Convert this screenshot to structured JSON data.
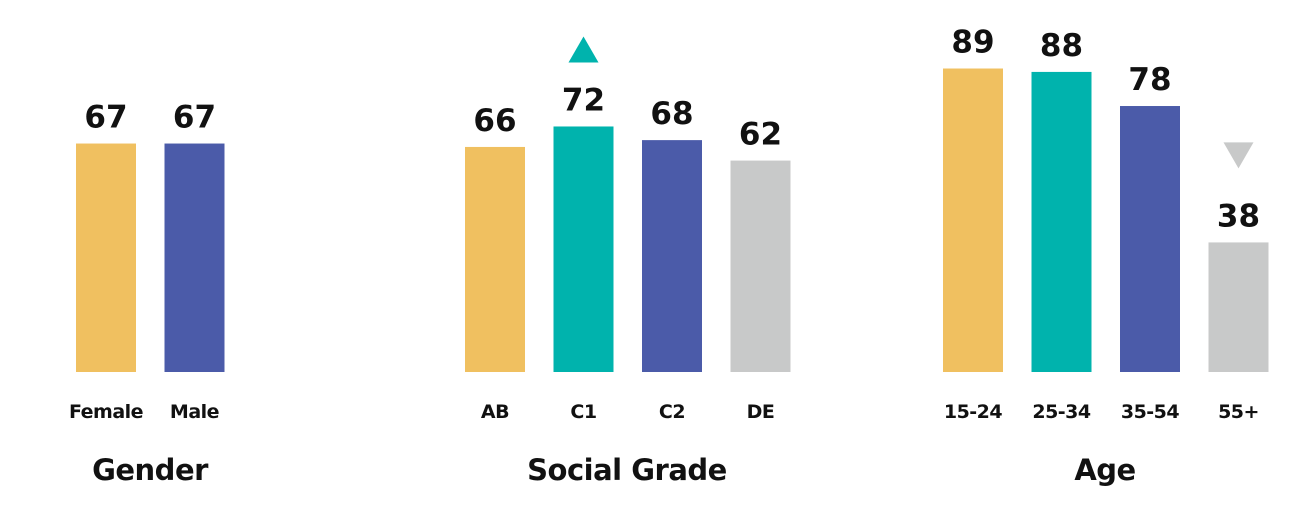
{
  "colors": {
    "yellow": "#F0C060",
    "teal": "#00B3AD",
    "blue": "#4B5BA9",
    "grey": "#C8C9C9",
    "up_arrow": "#00B3AD",
    "down_arrow": "#C8C9C9"
  },
  "chart_data": [
    {
      "type": "bar",
      "title": "Gender",
      "categories": [
        "Female",
        "Male"
      ],
      "values": [
        67,
        67
      ],
      "bar_colors": [
        "yellow",
        "blue"
      ],
      "markers": [
        null,
        null
      ]
    },
    {
      "type": "bar",
      "title": "Social Grade",
      "categories": [
        "AB",
        "C1",
        "C2",
        "DE"
      ],
      "values": [
        66,
        72,
        68,
        62
      ],
      "bar_colors": [
        "yellow",
        "teal",
        "blue",
        "grey"
      ],
      "markers": [
        null,
        "up",
        null,
        null
      ]
    },
    {
      "type": "bar",
      "title": "Age",
      "categories": [
        "15-24",
        "25-34",
        "35-54",
        "55+"
      ],
      "values": [
        89,
        88,
        78,
        38
      ],
      "bar_colors": [
        "yellow",
        "teal",
        "blue",
        "grey"
      ],
      "markers": [
        null,
        null,
        null,
        "down"
      ]
    }
  ]
}
